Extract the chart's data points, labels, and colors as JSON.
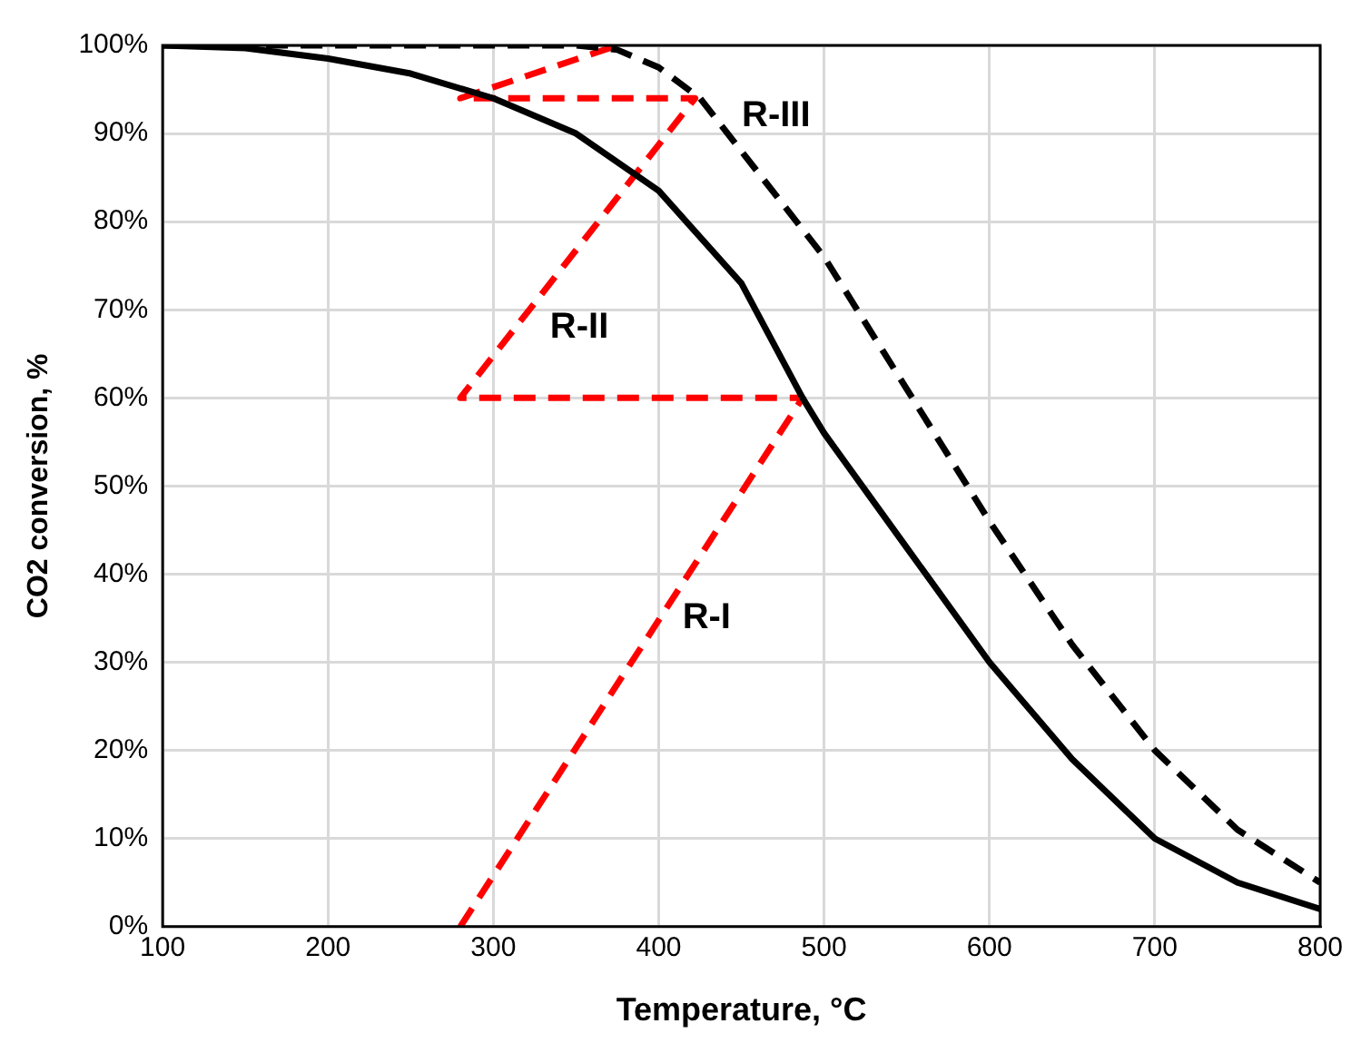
{
  "chart_data": {
    "type": "line",
    "xlabel": "Temperature, °C",
    "ylabel": "CO2 conversion, %",
    "xlim": [
      100,
      800
    ],
    "xticks": [
      100,
      200,
      300,
      400,
      500,
      600,
      700,
      800
    ],
    "ylim": [
      0,
      100
    ],
    "yticks": [
      {
        "value": 0,
        "label": "0%"
      },
      {
        "value": 10,
        "label": "10%"
      },
      {
        "value": 20,
        "label": "20%"
      },
      {
        "value": 30,
        "label": "30%"
      },
      {
        "value": 40,
        "label": "40%"
      },
      {
        "value": 50,
        "label": "50%"
      },
      {
        "value": 60,
        "label": "60%"
      },
      {
        "value": 70,
        "label": "70%"
      },
      {
        "value": 80,
        "label": "80%"
      },
      {
        "value": 90,
        "label": "90%"
      },
      {
        "value": 100,
        "label": "100%"
      }
    ],
    "grid": true,
    "legend": false,
    "marker": "none",
    "series": [
      {
        "color": "#000000",
        "line_style": "solid",
        "x": [
          100,
          150,
          200,
          250,
          300,
          350,
          400,
          450,
          487,
          500,
          550,
          600,
          650,
          700,
          750,
          800
        ],
        "values": [
          100,
          99.7,
          98.5,
          96.8,
          94,
          90,
          83.5,
          73,
          60,
          56,
          43,
          30,
          19,
          10,
          5,
          2
        ]
      },
      {
        "color": "#000000",
        "line_style": "dashed",
        "x": [
          100,
          200,
          300,
          350,
          375,
          400,
          425,
          450,
          500,
          550,
          600,
          650,
          700,
          750,
          800
        ],
        "values": [
          100,
          100,
          100,
          100,
          99.5,
          97.5,
          94,
          88,
          76,
          61,
          46,
          32,
          20,
          11,
          5
        ]
      },
      {
        "color": "#ff0000",
        "line_style": "dashed",
        "x": [
          280,
          487,
          280,
          422,
          280,
          375
        ],
        "values": [
          0,
          60,
          60,
          94,
          94,
          100
        ]
      }
    ],
    "annotations": [
      "R-I",
      "R-II",
      "R-III"
    ]
  }
}
